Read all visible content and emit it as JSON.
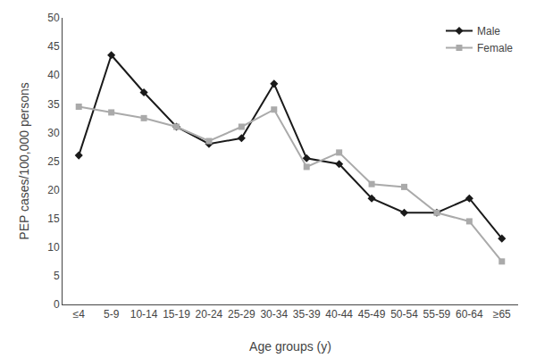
{
  "chart_data": {
    "type": "line",
    "xlabel": "Age groups (y)",
    "ylabel": "PEP cases/100,000 persons",
    "categories": [
      "≤4",
      "5-9",
      "10-14",
      "15-19",
      "20-24",
      "25-29",
      "30-34",
      "35-39",
      "40-44",
      "45-49",
      "50-54",
      "55-59",
      "60-64",
      "≥65"
    ],
    "series": [
      {
        "name": "Male",
        "color": "#1a1a1a",
        "marker": "diamond",
        "values": [
          26,
          43.5,
          37,
          31,
          28,
          29,
          38.5,
          25.5,
          24.5,
          18.5,
          16,
          16,
          18.5,
          11.5
        ]
      },
      {
        "name": "Female",
        "color": "#aaaaaa",
        "marker": "square",
        "values": [
          34.5,
          33.5,
          32.5,
          31,
          28.5,
          31,
          34,
          24,
          26.5,
          21,
          20.5,
          16,
          14.5,
          7.5
        ]
      }
    ],
    "ylim": [
      0,
      50
    ],
    "yticks": [
      0,
      5,
      10,
      15,
      20,
      25,
      30,
      35,
      40,
      45,
      50
    ],
    "grid": false,
    "legend": "upper right"
  }
}
